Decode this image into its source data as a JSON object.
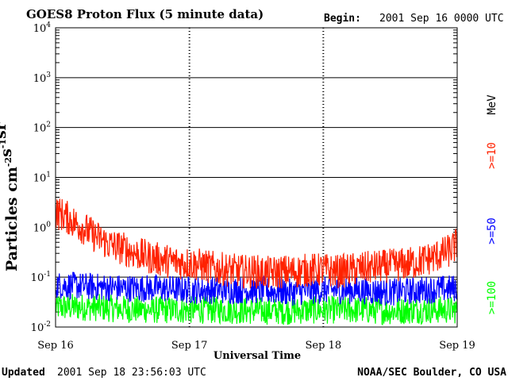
{
  "header": {
    "title": "GOES8 Proton Flux (5 minute data)",
    "begin_label": "Begin:",
    "begin_value": "2001 Sep 16 0000 UTC"
  },
  "footer": {
    "updated_label": "Updated",
    "updated_value": "2001 Sep 18 23:56:03 UTC",
    "source": "NOAA/SEC Boulder, CO USA"
  },
  "chart_data": {
    "type": "line",
    "title": "GOES8 Proton Flux (5 minute data)",
    "xlabel": "Universal Time",
    "ylabel": "Particles cm-2s-1sr-1",
    "y_scale": "log",
    "ylim": [
      0.01,
      10000
    ],
    "xlim": [
      0,
      3
    ],
    "x_unit": "days since 2001 Sep 16 0000 UTC",
    "x_tick_values": [
      0,
      1,
      2,
      3
    ],
    "x_tick_labels": [
      "Sep 16",
      "Sep 17",
      "Sep 18",
      "Sep 19"
    ],
    "y_tick_values": [
      0.01,
      0.1,
      1,
      10,
      100,
      1000,
      10000
    ],
    "y_tick_labels": [
      {
        "base": "10",
        "exp": "-2"
      },
      {
        "base": "10",
        "exp": "-1"
      },
      {
        "base": "10",
        "exp": "0"
      },
      {
        "base": "10",
        "exp": "1"
      },
      {
        "base": "10",
        "exp": "2"
      },
      {
        "base": "10",
        "exp": "3"
      },
      {
        "base": "10",
        "exp": "4"
      }
    ],
    "grid": true,
    "legend_unit": "MeV",
    "series": [
      {
        "name": ">=10",
        "color": "#ff2200",
        "x": [
          0,
          0.05,
          0.1,
          0.15,
          0.2,
          0.25,
          0.3,
          0.35,
          0.4,
          0.5,
          0.6,
          0.7,
          0.8,
          0.9,
          1.0,
          1.1,
          1.2,
          1.3,
          1.4,
          1.5,
          1.6,
          1.7,
          1.8,
          1.9,
          2.0,
          2.1,
          2.2,
          2.3,
          2.4,
          2.5,
          2.6,
          2.7,
          2.8,
          2.9,
          2.95,
          3.0
        ],
        "y": [
          2.0,
          1.8,
          1.5,
          1.2,
          1.0,
          0.8,
          0.65,
          0.55,
          0.45,
          0.38,
          0.3,
          0.25,
          0.22,
          0.2,
          0.19,
          0.17,
          0.15,
          0.14,
          0.13,
          0.13,
          0.12,
          0.13,
          0.13,
          0.14,
          0.14,
          0.13,
          0.14,
          0.15,
          0.16,
          0.17,
          0.18,
          0.2,
          0.24,
          0.3,
          0.35,
          0.45
        ]
      },
      {
        "name": ">=50",
        "color": "#0000ff",
        "x": [
          0,
          0.25,
          0.5,
          0.75,
          1.0,
          1.25,
          1.5,
          1.75,
          2.0,
          2.25,
          2.5,
          2.75,
          3.0
        ],
        "y": [
          0.07,
          0.065,
          0.06,
          0.06,
          0.055,
          0.055,
          0.055,
          0.05,
          0.055,
          0.055,
          0.05,
          0.055,
          0.06
        ]
      },
      {
        "name": ">=100",
        "color": "#00ff00",
        "x": [
          0,
          0.25,
          0.5,
          0.75,
          1.0,
          1.25,
          1.5,
          1.75,
          2.0,
          2.25,
          2.5,
          2.75,
          3.0
        ],
        "y": [
          0.025,
          0.025,
          0.023,
          0.022,
          0.022,
          0.022,
          0.021,
          0.021,
          0.022,
          0.022,
          0.021,
          0.022,
          0.022
        ]
      }
    ]
  }
}
